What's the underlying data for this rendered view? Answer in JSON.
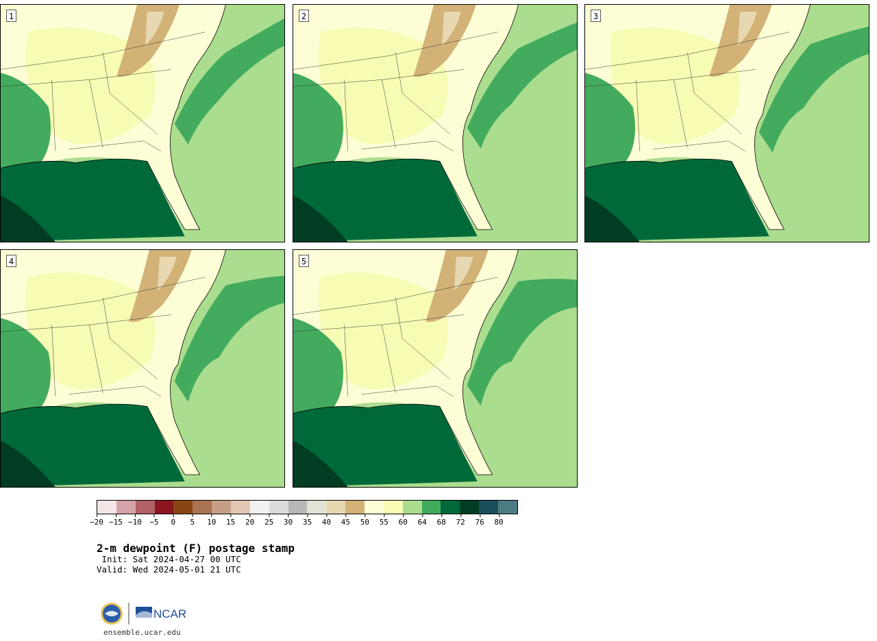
{
  "panels": [
    {
      "label": "1"
    },
    {
      "label": "2"
    },
    {
      "label": "3"
    },
    {
      "label": "4"
    },
    {
      "label": "5"
    }
  ],
  "colorbar": {
    "colors": [
      "#f4e6e6",
      "#d5a3a7",
      "#b26165",
      "#8b1620",
      "#8b4513",
      "#a97453",
      "#c59f85",
      "#e2c6b4",
      "#f1f1f1",
      "#dcdcdc",
      "#b8b8b8",
      "#e1e3d4",
      "#e8d8b2",
      "#d2b277",
      "#fefed6",
      "#f7fbb3",
      "#abdd8f",
      "#43ab5d",
      "#00693a",
      "#003d23",
      "#1b4e5a",
      "#4d7b84"
    ],
    "ticks": [
      "−20",
      "−15",
      "−10",
      "−5",
      "0",
      "5",
      "10",
      "15",
      "20",
      "25",
      "30",
      "35",
      "40",
      "45",
      "50",
      "55",
      "60",
      "64",
      "68",
      "72",
      "76",
      "80"
    ]
  },
  "title": "2-m dewpoint (F) postage stamp",
  "init": " Init: Sat 2024-04-27 00 UTC",
  "valid": "Valid: Wed 2024-05-01 21 UTC",
  "logos": {
    "left": "nsf-logo",
    "right_text": "NCAR",
    "brand_color": "#1f4e99"
  },
  "site": "ensemble.ucar.edu"
}
